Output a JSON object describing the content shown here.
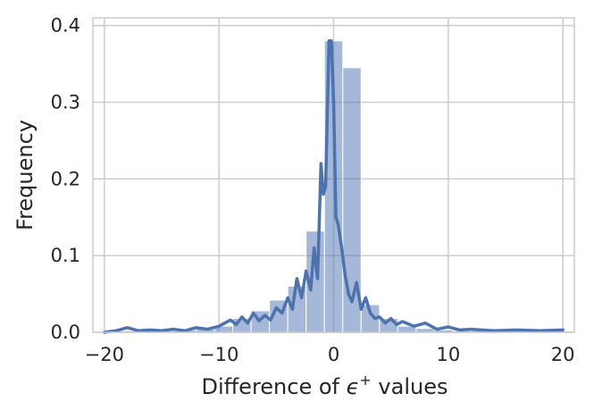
{
  "chart_data": {
    "type": "bar",
    "title": "",
    "xlabel": "Difference of ϵ⁺ values",
    "xlabel_parts": {
      "before": "Difference of ",
      "symbol": "ϵ",
      "superscript": "+",
      "after": " values"
    },
    "ylabel": "Frequency",
    "xlim": [
      -21,
      21
    ],
    "ylim": [
      0,
      0.41
    ],
    "x_ticks": [
      -20,
      -10,
      0,
      10,
      20
    ],
    "x_tick_labels": [
      "−20",
      "−10",
      "0",
      "10",
      "20"
    ],
    "y_ticks": [
      0.0,
      0.1,
      0.2,
      0.3,
      0.4
    ],
    "y_tick_labels": [
      "0.0",
      "0.1",
      "0.2",
      "0.3",
      "0.4"
    ],
    "grid": true,
    "colors": {
      "bar": "#4c72b0",
      "bar_opacity": 0.5,
      "line": "#4c72b0",
      "grid": "#cccccc",
      "frame": "#cccccc"
    },
    "histogram": {
      "bin_edges": [
        -20,
        -18.4,
        -16.8,
        -15.2,
        -13.6,
        -12,
        -10.4,
        -8.8,
        -7.2,
        -5.6,
        -4,
        -2.4,
        -0.8,
        0.8,
        2.4,
        4,
        5.6,
        7.2,
        8.8,
        10.4,
        12,
        13.6,
        15.2,
        16.8,
        18.4,
        20
      ],
      "values": [
        0.002,
        0.002,
        0.002,
        0.002,
        0.003,
        0.004,
        0.008,
        0.018,
        0.028,
        0.042,
        0.06,
        0.132,
        0.38,
        0.345,
        0.036,
        0.018,
        0.008,
        0.005,
        0.003,
        0.002,
        0.002,
        0.002,
        0.002,
        0.002,
        0.002
      ]
    },
    "density_line": {
      "x": [
        -20,
        -19,
        -18,
        -17,
        -16,
        -15,
        -14,
        -13,
        -12,
        -11,
        -10,
        -9.5,
        -9,
        -8.5,
        -8,
        -7.5,
        -7,
        -6.5,
        -6,
        -5.5,
        -5,
        -4.5,
        -4,
        -3.6,
        -3.2,
        -2.8,
        -2.4,
        -2.0,
        -1.7,
        -1.4,
        -1.1,
        -0.9,
        -0.7,
        -0.4,
        -0.2,
        0,
        0.2,
        0.4,
        0.7,
        1.0,
        1.3,
        1.6,
        2.0,
        2.4,
        2.8,
        3.2,
        3.6,
        4,
        4.5,
        5,
        5.5,
        6,
        7,
        8,
        9,
        10,
        11,
        12,
        14,
        16,
        18,
        20
      ],
      "y": [
        0.0,
        0.002,
        0.006,
        0.002,
        0.003,
        0.002,
        0.004,
        0.002,
        0.006,
        0.004,
        0.008,
        0.012,
        0.016,
        0.01,
        0.02,
        0.012,
        0.025,
        0.015,
        0.022,
        0.016,
        0.032,
        0.025,
        0.045,
        0.03,
        0.07,
        0.045,
        0.08,
        0.055,
        0.11,
        0.07,
        0.22,
        0.18,
        0.19,
        0.38,
        0.38,
        0.3,
        0.15,
        0.14,
        0.11,
        0.075,
        0.05,
        0.04,
        0.065,
        0.03,
        0.045,
        0.025,
        0.018,
        0.02,
        0.012,
        0.018,
        0.01,
        0.014,
        0.008,
        0.012,
        0.004,
        0.007,
        0.003,
        0.004,
        0.002,
        0.003,
        0.002,
        0.003
      ]
    }
  }
}
